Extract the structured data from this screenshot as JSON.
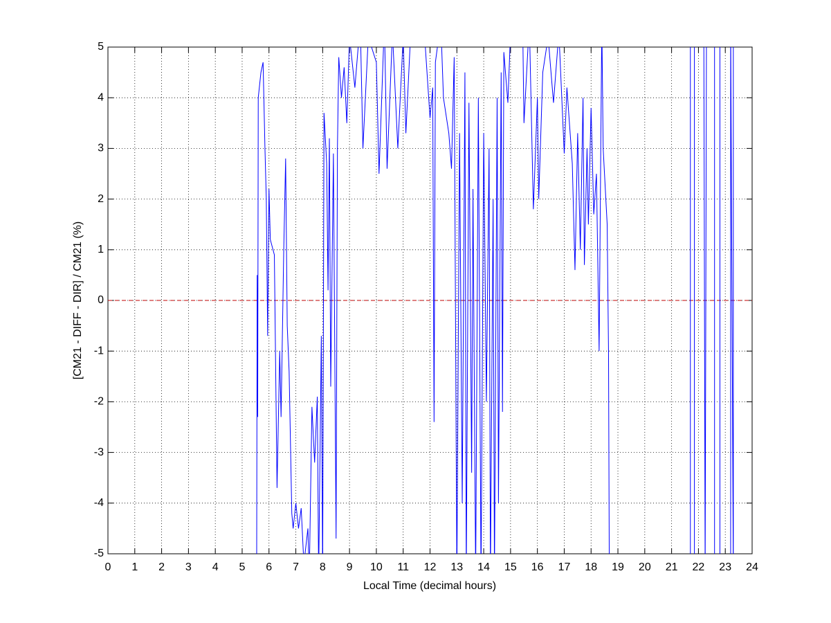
{
  "chart_data": {
    "type": "line",
    "x_label": "Local Time (decimal hours)",
    "y_label": "[CM21 - DIFF - DIR] / CM21 (%)",
    "x": [
      5.54,
      5.56,
      5.58,
      5.6,
      5.7,
      5.78,
      5.85,
      5.9,
      5.95,
      6.0,
      6.05,
      6.1,
      6.2,
      6.3,
      6.4,
      6.45,
      6.55,
      6.62,
      6.68,
      6.75,
      6.85,
      6.9,
      7.0,
      7.1,
      7.2,
      7.3,
      7.45,
      7.5,
      7.6,
      7.7,
      7.8,
      7.85,
      7.95,
      8.0,
      8.05,
      8.15,
      8.2,
      8.25,
      8.3,
      8.4,
      8.5,
      8.55,
      8.6,
      8.7,
      8.8,
      8.9,
      9.0,
      9.2,
      9.4,
      9.5,
      9.7,
      10.0,
      10.1,
      10.3,
      10.4,
      10.6,
      10.8,
      11.0,
      11.1,
      11.3,
      11.8,
      12.0,
      12.1,
      12.15,
      12.2,
      12.4,
      12.5,
      12.7,
      12.8,
      12.9,
      13.0,
      13.1,
      13.2,
      13.3,
      13.35,
      13.45,
      13.55,
      13.6,
      13.7,
      13.8,
      13.9,
      14.0,
      14.1,
      14.2,
      14.25,
      14.35,
      14.4,
      14.5,
      14.55,
      14.65,
      14.7,
      14.75,
      14.9,
      15.0,
      15.45,
      15.5,
      15.7,
      15.85,
      16.0,
      16.05,
      16.2,
      16.4,
      16.6,
      16.8,
      17.0,
      17.1,
      17.3,
      17.4,
      17.5,
      17.6,
      17.7,
      17.75,
      17.85,
      17.9,
      18.0,
      18.1,
      18.2,
      18.3,
      18.4,
      18.45,
      18.6,
      18.65,
      18.68,
      null,
      21.7,
      21.7,
      null,
      21.85,
      21.85,
      null,
      22.2,
      22.25,
      22.3,
      null,
      22.6,
      22.6,
      null,
      22.8,
      22.8,
      null,
      23.2,
      23.2,
      23.3,
      23.3
    ],
    "values": [
      -5.5,
      0.5,
      -2.3,
      4.0,
      4.5,
      4.7,
      3.0,
      2.0,
      -0.7,
      2.2,
      1.2,
      1.1,
      0.9,
      -3.7,
      -1.0,
      -2.3,
      1.0,
      2.8,
      -0.5,
      -1.4,
      -4.2,
      -4.5,
      -4.0,
      -4.5,
      -4.1,
      -5.2,
      -4.5,
      -5.5,
      -2.1,
      -3.2,
      -1.9,
      -5.5,
      -0.7,
      -5.5,
      3.7,
      2.7,
      0.2,
      3.2,
      -1.7,
      2.9,
      -4.7,
      3.0,
      4.8,
      4.0,
      4.6,
      3.5,
      5.2,
      4.2,
      5.5,
      3.0,
      5.2,
      4.7,
      2.5,
      5.5,
      2.6,
      5.3,
      3.0,
      5.2,
      3.3,
      5.5,
      5.2,
      3.6,
      4.2,
      -2.4,
      4.7,
      5.5,
      4.0,
      3.3,
      2.6,
      4.8,
      -5.5,
      3.3,
      -4.0,
      4.5,
      -5.5,
      3.9,
      -3.4,
      2.2,
      -5.5,
      4.0,
      -5.5,
      3.3,
      -2.0,
      3.0,
      -5.5,
      2.0,
      -5.5,
      4.0,
      -4.0,
      4.5,
      -2.2,
      4.9,
      3.9,
      5.3,
      5.5,
      3.5,
      5.5,
      1.8,
      4.0,
      2.0,
      4.5,
      5.2,
      3.9,
      5.3,
      2.9,
      4.2,
      2.7,
      0.6,
      3.3,
      1.0,
      4.0,
      0.7,
      3.0,
      1.5,
      3.8,
      1.7,
      2.5,
      -1.0,
      5.5,
      3.0,
      1.5,
      -1.0,
      -5.5,
      null,
      -5.5,
      5.5,
      null,
      -5.5,
      5.5,
      null,
      5.5,
      -5.5,
      5.5,
      null,
      -5.5,
      5.5,
      null,
      -5.5,
      5.5,
      null,
      -5.5,
      5.5,
      -5.5,
      5.5
    ],
    "color": "#0000ff",
    "reference_line": {
      "y": 0,
      "color": "#c00000"
    },
    "xlim": [
      0,
      24
    ],
    "xticks": [
      0,
      1,
      2,
      3,
      4,
      5,
      6,
      7,
      8,
      9,
      10,
      11,
      12,
      13,
      14,
      15,
      16,
      17,
      18,
      19,
      20,
      21,
      22,
      23,
      24
    ],
    "ylim": [
      -5,
      5
    ],
    "yticks": [
      -5,
      -4,
      -3,
      -2,
      -1,
      0,
      1,
      2,
      3,
      4,
      5
    ],
    "grid": true
  }
}
